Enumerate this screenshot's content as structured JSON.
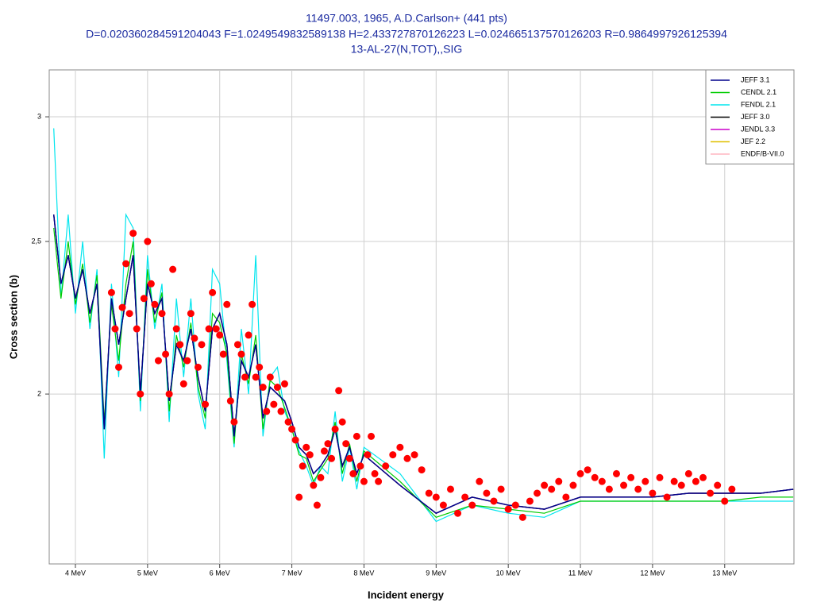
{
  "chart_data": {
    "type": "line",
    "title_lines": [
      "11497.003, 1965, A.D.Carlson+ (441 pts)",
      "D=0.020360284591204043 F=1.0249549832589138 H=2.433727870126223 L=0.024665137570126203 R=0.9864997926125394",
      "13-AL-27(N,TOT),,SIG"
    ],
    "xlabel": "Incident energy",
    "ylabel": "Cross section (b)",
    "xlim": [
      3.637,
      13.96
    ],
    "ylim": [
      1.56,
      3.213
    ],
    "ylog": true,
    "grid": true,
    "legend": "top-right",
    "xticks": [
      {
        "value": 4,
        "label": "4 MeV"
      },
      {
        "value": 5,
        "label": "5 MeV"
      },
      {
        "value": 6,
        "label": "6 MeV"
      },
      {
        "value": 7,
        "label": "7 MeV"
      },
      {
        "value": 8,
        "label": "8 MeV"
      },
      {
        "value": 9,
        "label": "9 MeV"
      },
      {
        "value": 10,
        "label": "10 MeV"
      },
      {
        "value": 11,
        "label": "11 MeV"
      },
      {
        "value": 12,
        "label": "12 MeV"
      },
      {
        "value": 13,
        "label": "13 MeV"
      }
    ],
    "yticks": [
      2,
      {
        "value": 2.5,
        "label": "2,5"
      },
      3
    ],
    "x": [
      3.7,
      3.8,
      3.9,
      4.0,
      4.1,
      4.2,
      4.3,
      4.4,
      4.5,
      4.6,
      4.7,
      4.8,
      4.9,
      5.0,
      5.1,
      5.2,
      5.3,
      5.4,
      5.5,
      5.6,
      5.7,
      5.8,
      5.9,
      6.0,
      6.1,
      6.2,
      6.3,
      6.4,
      6.5,
      6.6,
      6.7,
      6.8,
      6.9,
      7.0,
      7.1,
      7.2,
      7.3,
      7.4,
      7.5,
      7.6,
      7.7,
      7.8,
      7.9,
      8.0,
      8.5,
      9,
      9.5,
      10,
      10.5,
      11,
      11.5,
      12,
      12.5,
      13,
      13.5,
      13.95
    ],
    "series": [
      {
        "name": "JEFF 3.1",
        "color": "#00008b",
        "values": [
          2.6,
          2.35,
          2.45,
          2.3,
          2.4,
          2.25,
          2.35,
          1.9,
          2.3,
          2.15,
          2.3,
          2.45,
          2.0,
          2.35,
          2.25,
          2.3,
          1.98,
          2.15,
          2.1,
          2.2,
          2.05,
          1.95,
          2.2,
          2.25,
          2.15,
          1.88,
          2.1,
          2.05,
          2.15,
          1.93,
          2.02,
          2.0,
          1.98,
          1.92,
          1.85,
          1.83,
          1.78,
          1.8,
          1.83,
          1.9,
          1.8,
          1.85,
          1.78,
          1.83,
          1.75,
          1.68,
          1.72,
          1.7,
          1.69,
          1.72,
          1.72,
          1.72,
          1.73,
          1.73,
          1.73,
          1.74
        ]
      },
      {
        "name": "CENDL 2.1",
        "color": "#00cc00",
        "values": [
          2.55,
          2.3,
          2.5,
          2.28,
          2.42,
          2.22,
          2.38,
          1.92,
          2.28,
          2.1,
          2.35,
          2.5,
          1.98,
          2.4,
          2.22,
          2.32,
          1.95,
          2.18,
          2.08,
          2.22,
          2.02,
          1.93,
          2.25,
          2.22,
          2.12,
          1.86,
          2.12,
          2.03,
          2.18,
          1.9,
          2.04,
          2.02,
          1.96,
          1.9,
          1.83,
          1.82,
          1.76,
          1.79,
          1.82,
          1.92,
          1.78,
          1.86,
          1.76,
          1.84,
          1.76,
          1.67,
          1.7,
          1.69,
          1.68,
          1.71,
          1.71,
          1.71,
          1.71,
          1.71,
          1.72,
          1.72
        ]
      },
      {
        "name": "FENDL 2.1",
        "color": "#00e5ee",
        "values": [
          2.95,
          2.3,
          2.6,
          2.25,
          2.5,
          2.2,
          2.4,
          1.82,
          2.35,
          2.05,
          2.6,
          2.55,
          1.95,
          2.45,
          2.2,
          2.35,
          1.92,
          2.3,
          2.05,
          2.3,
          2.0,
          1.9,
          2.4,
          2.35,
          2.1,
          1.85,
          2.2,
          2.0,
          2.45,
          1.88,
          2.05,
          2.08,
          1.95,
          1.9,
          1.84,
          1.8,
          1.75,
          1.8,
          1.78,
          1.95,
          1.76,
          1.85,
          1.74,
          1.85,
          1.78,
          1.66,
          1.7,
          1.68,
          1.67,
          1.71,
          1.71,
          1.71,
          1.71,
          1.71,
          1.71,
          1.71
        ]
      },
      {
        "name": "JEFF 3.0",
        "color": "#000000",
        "values": [
          2.6,
          2.35,
          2.45,
          2.3,
          2.4,
          2.25,
          2.35,
          1.9,
          2.3,
          2.15,
          2.3,
          2.45,
          2.0,
          2.35,
          2.25,
          2.3,
          1.98,
          2.15,
          2.1,
          2.2,
          2.05,
          1.95,
          2.2,
          2.25,
          2.15,
          1.88,
          2.1,
          2.05,
          2.15,
          1.93,
          2.02,
          2.0,
          1.98,
          1.92,
          1.85,
          1.83,
          1.78,
          1.8,
          1.83,
          1.9,
          1.8,
          1.85,
          1.78,
          1.83,
          1.75,
          1.68,
          1.72,
          1.7,
          1.69,
          1.72,
          1.72,
          1.72,
          1.73,
          1.73,
          1.73,
          1.74
        ]
      },
      {
        "name": "JENDL 3.3",
        "color": "#cc00cc",
        "values": [
          2.6,
          2.35,
          2.45,
          2.3,
          2.4,
          2.25,
          2.35,
          1.9,
          2.3,
          2.15,
          2.3,
          2.45,
          2.0,
          2.35,
          2.25,
          2.3,
          1.98,
          2.15,
          2.1,
          2.2,
          2.05,
          1.95,
          2.2,
          2.25,
          2.15,
          1.88,
          2.1,
          2.05,
          2.15,
          1.93,
          2.02,
          2.0,
          1.98,
          1.92,
          1.85,
          1.83,
          1.78,
          1.8,
          1.83,
          1.9,
          1.8,
          1.85,
          1.78,
          1.83,
          1.75,
          1.68,
          1.72,
          1.7,
          1.69,
          1.72,
          1.72,
          1.72,
          1.73,
          1.73,
          1.73,
          1.74
        ]
      },
      {
        "name": "JEF 2.2",
        "color": "#e0c000",
        "values": [
          2.6,
          2.35,
          2.45,
          2.3,
          2.4,
          2.25,
          2.35,
          1.9,
          2.3,
          2.15,
          2.3,
          2.45,
          2.0,
          2.35,
          2.25,
          2.3,
          1.98,
          2.15,
          2.1,
          2.2,
          2.05,
          1.95,
          2.2,
          2.25,
          2.15,
          1.88,
          2.1,
          2.05,
          2.15,
          1.93,
          2.02,
          2.0,
          1.98,
          1.92,
          1.85,
          1.83,
          1.78,
          1.8,
          1.83,
          1.9,
          1.8,
          1.85,
          1.78,
          1.83,
          1.75,
          1.68,
          1.72,
          1.7,
          1.69,
          1.72,
          1.72,
          1.72,
          1.73,
          1.73,
          1.73,
          1.74
        ]
      },
      {
        "name": "ENDF/B-VII.0",
        "color": "#ffb6c1",
        "values": [
          2.6,
          2.35,
          2.45,
          2.3,
          2.4,
          2.25,
          2.35,
          1.9,
          2.3,
          2.15,
          2.3,
          2.45,
          2.0,
          2.35,
          2.25,
          2.3,
          1.98,
          2.15,
          2.1,
          2.2,
          2.05,
          1.95,
          2.2,
          2.25,
          2.15,
          1.88,
          2.1,
          2.05,
          2.15,
          1.93,
          2.02,
          2.0,
          1.98,
          1.92,
          1.85,
          1.83,
          1.78,
          1.8,
          1.83,
          1.9,
          1.8,
          1.85,
          1.78,
          1.83,
          1.75,
          1.68,
          1.72,
          1.7,
          1.69,
          1.72,
          1.72,
          1.72,
          1.73,
          1.73,
          1.73,
          1.74
        ]
      }
    ],
    "points": {
      "color": "#ff0000",
      "x": [
        4.5,
        4.55,
        4.6,
        4.65,
        4.7,
        4.75,
        4.8,
        4.85,
        4.9,
        4.95,
        5.0,
        5.05,
        5.1,
        5.15,
        5.2,
        5.25,
        5.3,
        5.35,
        5.4,
        5.45,
        5.5,
        5.55,
        5.6,
        5.65,
        5.7,
        5.75,
        5.8,
        5.85,
        5.9,
        5.95,
        6.0,
        6.05,
        6.1,
        6.15,
        6.2,
        6.25,
        6.3,
        6.35,
        6.4,
        6.45,
        6.5,
        6.55,
        6.6,
        6.65,
        6.7,
        6.75,
        6.8,
        6.85,
        6.9,
        6.95,
        7.0,
        7.05,
        7.1,
        7.15,
        7.2,
        7.25,
        7.3,
        7.35,
        7.4,
        7.45,
        7.5,
        7.55,
        7.6,
        7.65,
        7.7,
        7.75,
        7.8,
        7.85,
        7.9,
        7.95,
        8.0,
        8.05,
        8.1,
        8.15,
        8.2,
        8.3,
        8.4,
        8.5,
        8.6,
        8.7,
        8.8,
        8.9,
        9.0,
        9.1,
        9.2,
        9.3,
        9.4,
        9.5,
        9.6,
        9.7,
        9.8,
        9.9,
        10.0,
        10.1,
        10.2,
        10.3,
        10.4,
        10.5,
        10.6,
        10.7,
        10.8,
        10.9,
        11.0,
        11.1,
        11.2,
        11.3,
        11.4,
        11.5,
        11.6,
        11.7,
        11.8,
        11.9,
        12.0,
        12.1,
        12.2,
        12.3,
        12.4,
        12.5,
        12.6,
        12.7,
        12.8,
        12.9,
        13.0,
        13.1
      ],
      "values": [
        2.32,
        2.2,
        2.08,
        2.27,
        2.42,
        2.25,
        2.53,
        2.2,
        2.0,
        2.3,
        2.5,
        2.35,
        2.28,
        2.1,
        2.25,
        2.12,
        2.0,
        2.4,
        2.2,
        2.15,
        2.03,
        2.1,
        2.25,
        2.17,
        2.08,
        2.15,
        1.97,
        2.2,
        2.32,
        2.2,
        2.18,
        2.12,
        2.28,
        1.98,
        1.92,
        2.15,
        2.12,
        2.05,
        2.18,
        2.28,
        2.05,
        2.08,
        2.02,
        1.95,
        2.05,
        1.97,
        2.02,
        1.95,
        2.03,
        1.92,
        1.9,
        1.87,
        1.72,
        1.8,
        1.85,
        1.83,
        1.75,
        1.7,
        1.77,
        1.84,
        1.86,
        1.82,
        1.9,
        2.01,
        1.92,
        1.86,
        1.82,
        1.78,
        1.88,
        1.8,
        1.76,
        1.83,
        1.88,
        1.78,
        1.76,
        1.8,
        1.83,
        1.85,
        1.82,
        1.83,
        1.79,
        1.73,
        1.72,
        1.7,
        1.74,
        1.68,
        1.72,
        1.7,
        1.76,
        1.73,
        1.71,
        1.74,
        1.69,
        1.7,
        1.67,
        1.71,
        1.73,
        1.75,
        1.74,
        1.76,
        1.72,
        1.75,
        1.78,
        1.79,
        1.77,
        1.76,
        1.74,
        1.78,
        1.75,
        1.77,
        1.74,
        1.76,
        1.73,
        1.77,
        1.72,
        1.76,
        1.75,
        1.78,
        1.76,
        1.77,
        1.73,
        1.75,
        1.71,
        1.74
      ]
    }
  }
}
